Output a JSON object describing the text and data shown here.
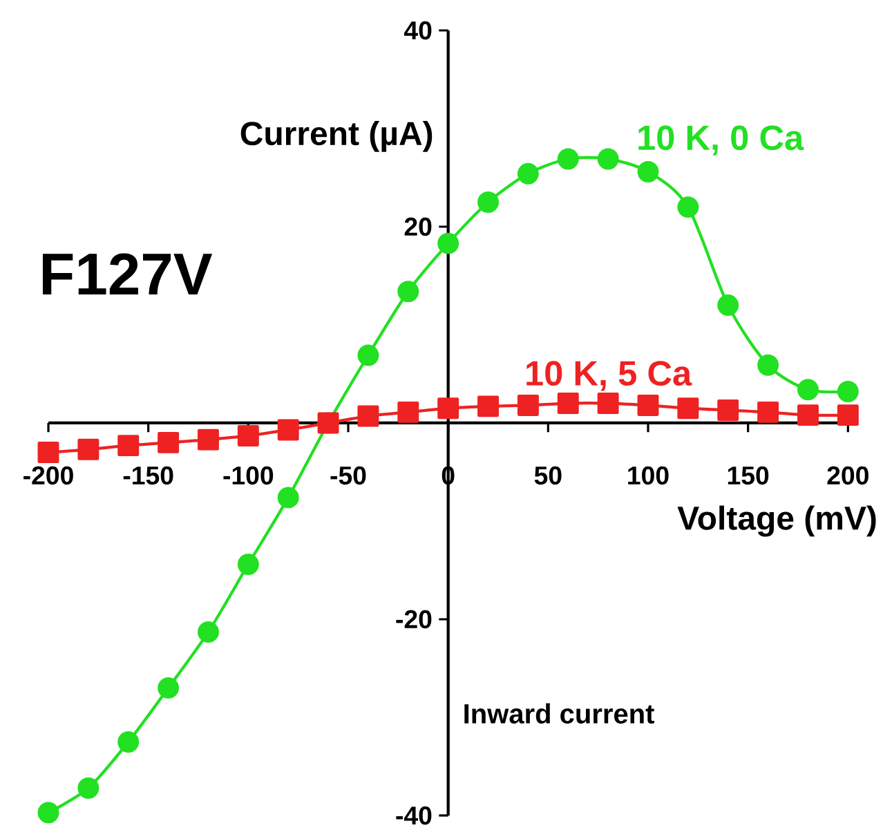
{
  "chart_data": {
    "type": "line",
    "title": "F127V",
    "xlabel": "Voltage (mV)",
    "ylabel": "Current (µA)",
    "annotations": [
      "Inward current"
    ],
    "x": [
      -200,
      -180,
      -160,
      -140,
      -120,
      -100,
      -80,
      -60,
      -40,
      -20,
      0,
      20,
      40,
      60,
      80,
      100,
      120,
      140,
      160,
      180,
      200
    ],
    "series": [
      {
        "name": "10 K, 0 Ca",
        "color": "#22e022",
        "marker": "circle",
        "values": [
          -39.7,
          -37.2,
          -32.5,
          -27,
          -21.3,
          -14.4,
          -7.6,
          0,
          6.9,
          13.4,
          18.3,
          22.5,
          25.4,
          26.9,
          26.9,
          25.6,
          22,
          12,
          5.9,
          3.4,
          3.2
        ]
      },
      {
        "name": "10 K, 5 Ca",
        "color": "#ee2222",
        "marker": "square",
        "values": [
          -3,
          -2.7,
          -2.3,
          -2,
          -1.7,
          -1.3,
          -0.7,
          0,
          0.7,
          1.1,
          1.5,
          1.7,
          1.8,
          2,
          2,
          1.8,
          1.5,
          1.3,
          1.1,
          0.8,
          0.8
        ]
      }
    ],
    "xlim": [
      -200,
      200
    ],
    "ylim": [
      -40,
      40
    ],
    "xticks": [
      -200,
      -150,
      -100,
      -50,
      0,
      50,
      100,
      150,
      200
    ],
    "yticks": [
      -40,
      -20,
      20,
      40
    ],
    "grid": false,
    "legend": false
  }
}
